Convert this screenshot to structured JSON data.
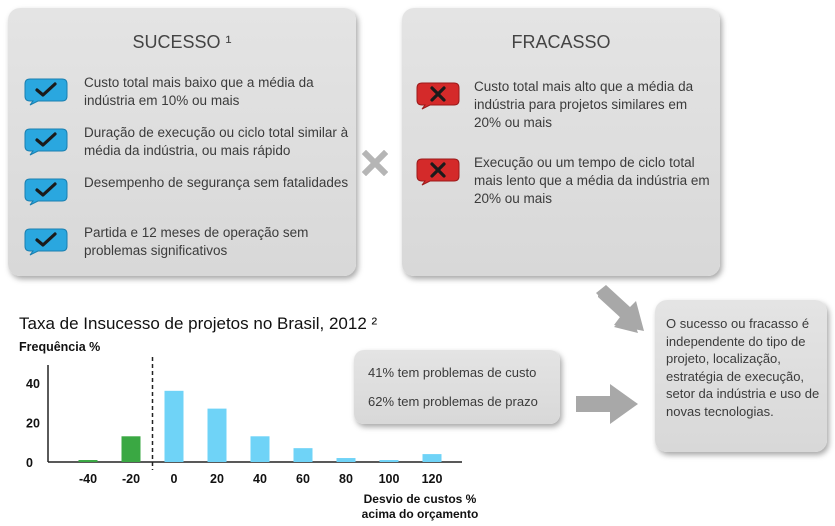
{
  "sucesso": {
    "title": "SUCESSO ¹",
    "items": [
      {
        "text": "Custo total mais baixo que a média da indústria em 10% ou mais",
        "icon": "check-bubble-icon"
      },
      {
        "text": "Duração de execução ou ciclo total similar à média da indústria, ou mais rápido",
        "icon": "check-bubble-icon"
      },
      {
        "text": "Desempenho de segurança sem fatalidades",
        "icon": "check-bubble-icon"
      },
      {
        "text": "Partida e 12 meses de operação sem problemas significativos",
        "icon": "check-bubble-icon"
      }
    ]
  },
  "fracasso": {
    "title": "FRACASSO",
    "items": [
      {
        "text": "Custo total mais alto que a média da indústria para projetos similares em 20% ou mais",
        "icon": "cross-bubble-icon"
      },
      {
        "text": "Execução ou um tempo de ciclo total mais lento que a média da indústria em 20% ou mais",
        "icon": "cross-bubble-icon"
      }
    ]
  },
  "conclusao": {
    "text": "O sucesso ou fracasso é independente do tipo de projeto, localização, estratégia de execução, setor da indústria e uso de novas tecnologias."
  },
  "stats": {
    "line1": "41% tem problemas de custo",
    "line2": "62% tem problemas de prazo"
  },
  "colors": {
    "panel": "#dcdcdc",
    "check_blue": "#2aa7df",
    "cross_red": "#d42a2a",
    "bar_green": "#3aa843",
    "bar_cyan": "#6fd3f7",
    "arrow_gray": "#a8a8a8"
  },
  "chart_data": {
    "type": "bar",
    "title": "Taxa de Insucesso de projetos no Brasil, 2012 ²",
    "ylabel": "Frequência %",
    "xlabel": "Desvio de custos % acima do orçamento",
    "categories": [
      "-40",
      "-20",
      "0",
      "20",
      "40",
      "60",
      "80",
      "100",
      "120"
    ],
    "values": [
      1,
      13,
      36,
      27,
      13,
      7,
      2,
      1,
      4
    ],
    "colors": [
      "#3aa843",
      "#3aa843",
      "#6fd3f7",
      "#6fd3f7",
      "#6fd3f7",
      "#6fd3f7",
      "#6fd3f7",
      "#6fd3f7",
      "#6fd3f7"
    ],
    "yticks": [
      0,
      20,
      40
    ],
    "ylim": [
      0,
      44
    ],
    "divider_after_index": 1,
    "grid": false,
    "legend": "none"
  }
}
